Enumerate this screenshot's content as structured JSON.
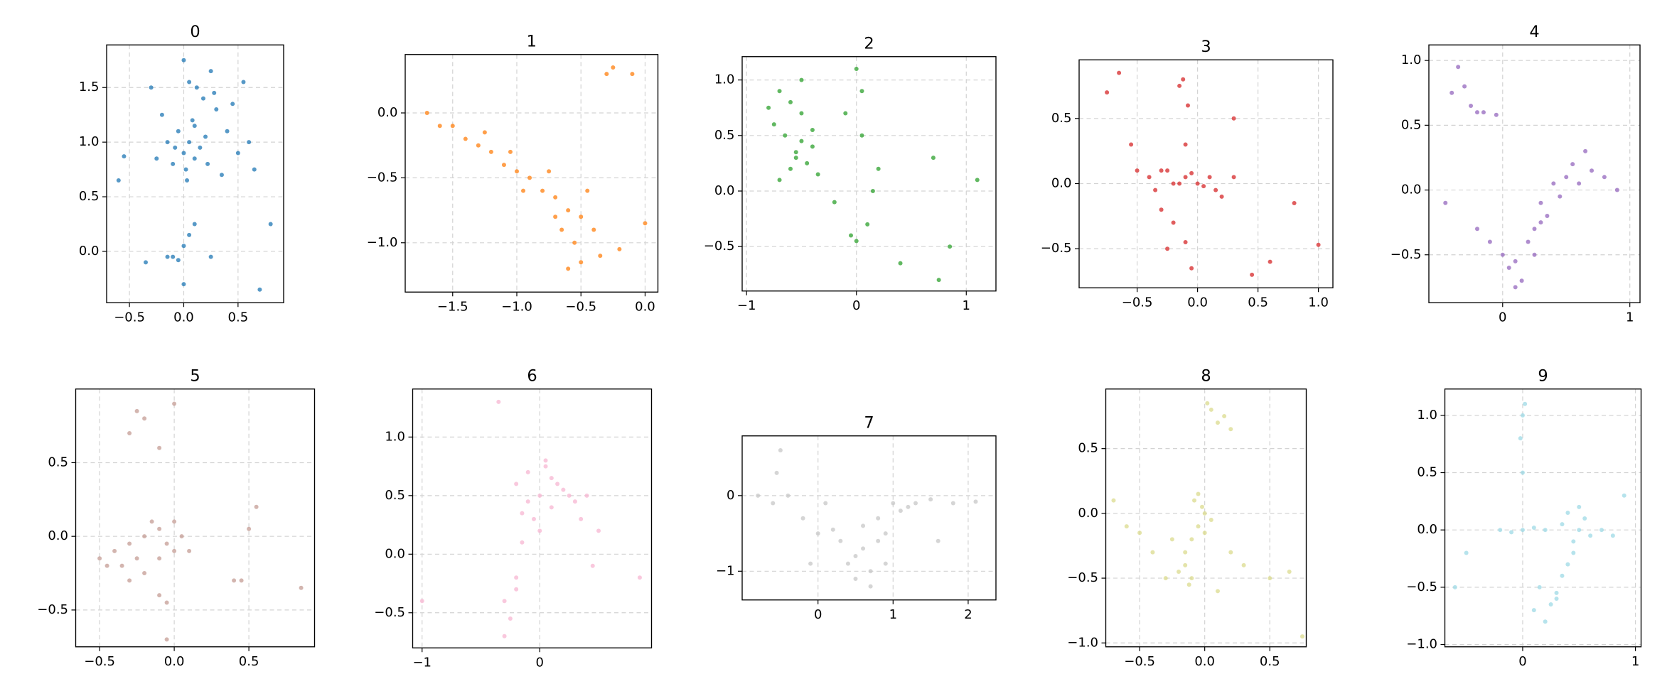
{
  "chart_data": [
    {
      "type": "scatter",
      "title": "0",
      "color": "#1f77b4",
      "grid": true,
      "xlim": [
        -0.71,
        0.92
      ],
      "ylim": [
        -0.47,
        1.89
      ],
      "xticks": [
        {
          "value": -0.5,
          "label": "−0.5"
        },
        {
          "value": 0,
          "label": "0.0"
        },
        0.5
      ],
      "yticks": [
        {
          "value": 0,
          "label": "0.0"
        },
        0.5,
        {
          "value": 1,
          "label": "1.0"
        },
        1.5
      ],
      "x": [
        0.0,
        0.05,
        0.1,
        -0.05,
        0.15,
        0.02,
        0.08,
        -0.1,
        0.2,
        0.3,
        -0.15,
        0.12,
        0.25,
        0.4,
        0.5,
        -0.2,
        0.35,
        0.0,
        0.18,
        0.22,
        0.05,
        -0.08,
        0.1,
        0.45,
        0.6,
        -0.3,
        0.28,
        -0.25,
        -0.1,
        -0.05,
        0.0,
        0.05,
        0.1,
        -0.35,
        -0.15,
        0.8,
        0.7,
        -0.6,
        -0.55,
        0.0,
        0.25,
        0.55,
        0.65,
        0.03
      ],
      "y": [
        0.9,
        1.0,
        0.85,
        1.1,
        0.95,
        0.75,
        1.2,
        0.8,
        1.05,
        1.3,
        1.0,
        1.5,
        1.65,
        1.1,
        0.9,
        1.25,
        0.7,
        1.75,
        1.4,
        0.8,
        1.55,
        0.95,
        1.15,
        1.35,
        1.0,
        1.5,
        1.45,
        0.85,
        -0.05,
        -0.08,
        0.05,
        0.15,
        0.25,
        -0.1,
        -0.05,
        0.25,
        -0.35,
        0.65,
        0.87,
        -0.3,
        -0.05,
        1.55,
        0.75,
        0.65
      ]
    },
    {
      "type": "scatter",
      "title": "1",
      "color": "#ff7f0e",
      "grid": true,
      "xlim": [
        -1.87,
        0.1
      ],
      "ylim": [
        -1.38,
        0.45
      ],
      "xticks": [
        {
          "value": -1.5,
          "label": "−1.5"
        },
        {
          "value": -1,
          "label": "−1.0"
        },
        {
          "value": -0.5,
          "label": "−0.5"
        },
        {
          "value": 0,
          "label": "0.0"
        }
      ],
      "yticks": [
        {
          "value": -1,
          "label": "−1.0"
        },
        {
          "value": -0.5,
          "label": "−0.5"
        },
        {
          "value": 0,
          "label": "0.0"
        }
      ],
      "x": [
        -1.7,
        -1.6,
        -1.5,
        -1.4,
        -1.3,
        -1.2,
        -1.1,
        -1.0,
        -0.9,
        -0.8,
        -0.7,
        -0.6,
        -0.5,
        -0.4,
        -0.35,
        -1.25,
        -1.05,
        -0.95,
        -0.75,
        -0.65,
        -0.55,
        -0.45,
        -0.6,
        -0.5,
        -0.7,
        -0.3,
        -0.25,
        -0.1,
        0.0,
        -0.2
      ],
      "y": [
        0.0,
        -0.1,
        -0.1,
        -0.2,
        -0.25,
        -0.3,
        -0.4,
        -0.45,
        -0.5,
        -0.6,
        -0.65,
        -0.75,
        -0.8,
        -0.9,
        -1.1,
        -0.15,
        -0.3,
        -0.6,
        -0.45,
        -0.9,
        -1.0,
        -0.6,
        -1.2,
        -1.15,
        -0.8,
        0.3,
        0.35,
        0.3,
        -0.85,
        -1.05
      ]
    },
    {
      "type": "scatter",
      "title": "2",
      "color": "#2ca02c",
      "grid": true,
      "xlim": [
        -1.04,
        1.27
      ],
      "ylim": [
        -0.9,
        1.21
      ],
      "xticks": [
        {
          "value": -1,
          "label": "−1"
        },
        0,
        1
      ],
      "yticks": [
        {
          "value": -0.5,
          "label": "−0.5"
        },
        {
          "value": 0,
          "label": "0.0"
        },
        0.5,
        {
          "value": 1,
          "label": "1.0"
        }
      ],
      "x": [
        -0.7,
        -0.6,
        -0.5,
        -0.65,
        -0.55,
        -0.45,
        -0.4,
        -0.75,
        -0.5,
        -0.6,
        -0.4,
        -0.55,
        -0.35,
        -0.8,
        -0.7,
        -0.5,
        -0.1,
        0.0,
        0.05,
        0.1,
        -0.05,
        0.15,
        0.0,
        -0.2,
        0.2,
        0.05,
        1.1,
        0.7,
        0.75,
        0.85,
        0.4
      ],
      "y": [
        0.9,
        0.8,
        0.7,
        0.5,
        0.3,
        0.25,
        0.4,
        0.6,
        1.0,
        0.2,
        0.55,
        0.35,
        0.15,
        0.75,
        0.1,
        0.45,
        0.7,
        1.1,
        0.5,
        -0.3,
        -0.4,
        0.0,
        -0.45,
        -0.1,
        0.2,
        0.9,
        0.1,
        0.3,
        -0.8,
        -0.5,
        -0.65
      ]
    },
    {
      "type": "scatter",
      "title": "3",
      "color": "#d62728",
      "grid": true,
      "xlim": [
        -0.98,
        1.12
      ],
      "ylim": [
        -0.8,
        0.95
      ],
      "xticks": [
        {
          "value": -0.5,
          "label": "−0.5"
        },
        {
          "value": 0,
          "label": "0.0"
        },
        0.5,
        {
          "value": 1,
          "label": "1.0"
        }
      ],
      "yticks": [
        {
          "value": -0.5,
          "label": "−0.5"
        },
        {
          "value": 0,
          "label": "0.0"
        },
        0.5
      ],
      "x": [
        -0.4,
        -0.3,
        -0.2,
        -0.1,
        0.0,
        0.1,
        0.15,
        -0.25,
        -0.15,
        -0.05,
        0.05,
        -0.35,
        -0.5,
        0.3,
        0.2,
        -0.12,
        -0.08,
        -0.1,
        -0.2,
        -0.25,
        -0.1,
        -0.05,
        -0.3,
        -0.75,
        -0.65,
        -0.55,
        0.8,
        1.0,
        0.6,
        0.45,
        0.3,
        -0.15
      ],
      "y": [
        0.05,
        0.1,
        0.0,
        0.05,
        0.0,
        0.05,
        -0.05,
        0.1,
        0.0,
        0.08,
        -0.02,
        -0.05,
        0.1,
        0.05,
        -0.1,
        0.8,
        0.6,
        0.3,
        -0.3,
        -0.5,
        -0.45,
        -0.65,
        -0.2,
        0.7,
        0.85,
        0.3,
        -0.15,
        -0.47,
        -0.6,
        -0.7,
        0.5,
        0.75
      ]
    },
    {
      "type": "scatter",
      "title": "4",
      "color": "#9467bd",
      "grid": true,
      "xlim": [
        -0.58,
        1.08
      ],
      "ylim": [
        -0.87,
        1.12
      ],
      "xticks": [
        0,
        1
      ],
      "yticks": [
        {
          "value": -0.5,
          "label": "−0.5"
        },
        {
          "value": 0,
          "label": "0.0"
        },
        0.5,
        {
          "value": 1,
          "label": "1.0"
        }
      ],
      "x": [
        -0.35,
        -0.3,
        -0.25,
        -0.2,
        -0.15,
        -0.05,
        -0.4,
        0.0,
        0.05,
        0.1,
        0.15,
        0.2,
        0.25,
        0.3,
        0.35,
        0.3,
        0.4,
        0.5,
        0.6,
        0.7,
        0.8,
        0.9,
        0.55,
        0.45,
        0.65,
        -0.1,
        -0.2,
        -0.45,
        0.25,
        0.1
      ],
      "y": [
        0.95,
        0.8,
        0.65,
        0.6,
        0.6,
        0.58,
        0.75,
        -0.5,
        -0.6,
        -0.55,
        -0.7,
        -0.4,
        -0.3,
        -0.1,
        -0.2,
        -0.25,
        0.05,
        0.1,
        0.05,
        0.15,
        0.1,
        0.0,
        0.2,
        -0.05,
        0.3,
        -0.4,
        -0.3,
        -0.1,
        -0.5,
        -0.75
      ]
    },
    {
      "type": "scatter",
      "title": "5",
      "color": "#c49c94",
      "grid": true,
      "xlim": [
        -0.66,
        0.94
      ],
      "ylim": [
        -0.75,
        1.0
      ],
      "xticks": [
        {
          "value": -0.5,
          "label": "−0.5"
        },
        {
          "value": 0,
          "label": "0.0"
        },
        0.5
      ],
      "yticks": [
        {
          "value": -0.5,
          "label": "−0.5"
        },
        {
          "value": 0,
          "label": "0.0"
        },
        0.5
      ],
      "x": [
        -0.5,
        -0.4,
        -0.3,
        -0.2,
        -0.1,
        0.0,
        0.05,
        -0.35,
        -0.25,
        -0.15,
        -0.05,
        -0.45,
        -0.3,
        -0.2,
        -0.1,
        0.0,
        -0.25,
        -0.3,
        -0.2,
        -0.1,
        0.0,
        -0.05,
        0.5,
        0.45,
        0.55,
        0.4,
        0.85,
        -0.05,
        -0.1,
        0.1
      ],
      "y": [
        -0.15,
        -0.1,
        -0.05,
        0.0,
        0.05,
        -0.1,
        0.0,
        -0.2,
        -0.15,
        0.1,
        -0.05,
        -0.2,
        -0.3,
        -0.25,
        -0.15,
        0.1,
        0.85,
        0.7,
        0.8,
        0.6,
        0.9,
        -0.45,
        0.05,
        -0.3,
        0.2,
        -0.3,
        -0.35,
        -0.7,
        -0.4,
        -0.1
      ]
    },
    {
      "type": "scatter",
      "title": "6",
      "color": "#f7b6d2",
      "grid": true,
      "xlim": [
        -1.08,
        0.95
      ],
      "ylim": [
        -0.8,
        1.41
      ],
      "xticks": [
        {
          "value": -1,
          "label": "−1"
        },
        0
      ],
      "yticks": [
        {
          "value": -0.5,
          "label": "−0.5"
        },
        {
          "value": 0,
          "label": "0.0"
        },
        0.5,
        {
          "value": 1,
          "label": "1.0"
        }
      ],
      "x": [
        -0.2,
        -0.1,
        0.0,
        0.1,
        0.2,
        0.3,
        0.4,
        -0.15,
        -0.05,
        0.05,
        0.15,
        0.25,
        0.0,
        -0.1,
        0.1,
        0.05,
        -0.2,
        -0.3,
        -0.25,
        -0.3,
        -0.2,
        -1.0,
        0.85,
        -0.35,
        0.5,
        -0.15,
        0.35,
        0.45
      ],
      "y": [
        0.6,
        0.7,
        0.5,
        0.4,
        0.55,
        0.45,
        0.5,
        0.35,
        0.3,
        0.75,
        0.6,
        0.5,
        0.2,
        0.45,
        0.65,
        0.8,
        -0.2,
        -0.4,
        -0.55,
        -0.7,
        -0.3,
        -0.4,
        -0.2,
        1.3,
        0.2,
        0.1,
        0.3,
        -0.1
      ]
    },
    {
      "type": "scatter",
      "title": "7",
      "color": "#c7c7c7",
      "grid": true,
      "xlim": [
        -1.01,
        2.37
      ],
      "ylim": [
        -1.38,
        0.79
      ],
      "xticks": [
        0,
        1,
        2
      ],
      "yticks": [
        {
          "value": -1,
          "label": "−1"
        },
        0
      ],
      "x": [
        0.3,
        0.5,
        0.7,
        0.9,
        1.1,
        0.4,
        0.6,
        0.8,
        1.0,
        1.2,
        0.5,
        0.7,
        0.9,
        0.6,
        0.8,
        1.3,
        1.5,
        1.8,
        2.1,
        -0.8,
        -0.6,
        -0.4,
        -0.2,
        -0.5,
        0.0,
        -0.1,
        -0.55,
        0.2,
        0.1,
        1.6
      ],
      "y": [
        -0.6,
        -0.8,
        -1.0,
        -0.5,
        -0.2,
        -0.9,
        -0.4,
        -0.3,
        -0.1,
        -0.15,
        -1.1,
        -1.2,
        -0.9,
        -0.7,
        -0.6,
        -0.1,
        -0.05,
        -0.1,
        -0.08,
        0.0,
        -0.1,
        0.0,
        -0.3,
        0.6,
        -0.5,
        -0.9,
        0.3,
        -0.45,
        -0.1,
        -0.6
      ]
    },
    {
      "type": "scatter",
      "title": "8",
      "color": "#dbdb8d",
      "grid": true,
      "xlim": [
        -0.76,
        0.78
      ],
      "ylim": [
        -1.03,
        0.96
      ],
      "xticks": [
        {
          "value": -0.5,
          "label": "−0.5"
        },
        {
          "value": 0,
          "label": "0.0"
        },
        0.5
      ],
      "yticks": [
        {
          "value": -1,
          "label": "−1.0"
        },
        {
          "value": -0.5,
          "label": "−0.5"
        },
        {
          "value": 0,
          "label": "0.0"
        },
        0.5
      ],
      "x": [
        -0.15,
        -0.1,
        -0.05,
        0.0,
        -0.2,
        -0.12,
        -0.08,
        -0.02,
        0.05,
        -0.15,
        -0.1,
        -0.05,
        0.0,
        0.05,
        0.1,
        0.15,
        0.2,
        0.02,
        -0.7,
        -0.6,
        -0.5,
        -0.4,
        0.2,
        0.3,
        0.5,
        0.65,
        0.75,
        -0.25,
        -0.3,
        0.1
      ],
      "y": [
        -0.3,
        -0.2,
        -0.1,
        0.0,
        -0.45,
        -0.55,
        0.1,
        0.05,
        -0.05,
        -0.4,
        -0.5,
        0.15,
        -0.15,
        0.8,
        0.7,
        0.75,
        0.65,
        0.85,
        0.1,
        -0.1,
        -0.15,
        -0.3,
        -0.3,
        -0.4,
        -0.5,
        -0.45,
        -0.95,
        -0.2,
        -0.5,
        -0.6
      ]
    },
    {
      "type": "scatter",
      "title": "9",
      "color": "#9edae5",
      "grid": true,
      "xlim": [
        -0.69,
        1.05
      ],
      "ylim": [
        -1.02,
        1.23
      ],
      "xticks": [
        0,
        1
      ],
      "yticks": [
        {
          "value": -1,
          "label": "−1.0"
        },
        {
          "value": -0.5,
          "label": "−0.5"
        },
        {
          "value": 0,
          "label": "0.0"
        },
        0.5,
        {
          "value": 1,
          "label": "1.0"
        }
      ],
      "x": [
        0.1,
        0.2,
        0.3,
        0.15,
        0.25,
        0.35,
        0.4,
        0.45,
        0.5,
        0.55,
        0.4,
        0.5,
        0.6,
        0.45,
        0.35,
        0.3,
        -0.2,
        -0.1,
        0.0,
        0.1,
        0.2,
        0.7,
        0.8,
        0.9,
        0.0,
        -0.02,
        0.0,
        0.02,
        -0.5,
        -0.6
      ],
      "y": [
        -0.7,
        -0.8,
        -0.6,
        -0.5,
        -0.65,
        -0.4,
        -0.3,
        -0.1,
        0.0,
        0.1,
        0.15,
        0.2,
        -0.05,
        -0.2,
        0.05,
        -0.55,
        0.0,
        -0.02,
        0.0,
        0.02,
        0.0,
        0.0,
        -0.05,
        0.3,
        0.5,
        0.8,
        1.0,
        1.1,
        -0.2,
        -0.5
      ]
    }
  ]
}
